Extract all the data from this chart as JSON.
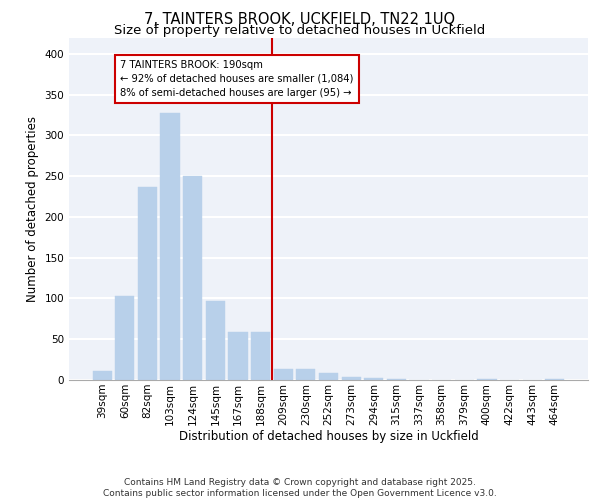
{
  "title1": "7, TAINTERS BROOK, UCKFIELD, TN22 1UQ",
  "title2": "Size of property relative to detached houses in Uckfield",
  "xlabel": "Distribution of detached houses by size in Uckfield",
  "ylabel": "Number of detached properties",
  "categories": [
    "39sqm",
    "60sqm",
    "82sqm",
    "103sqm",
    "124sqm",
    "145sqm",
    "167sqm",
    "188sqm",
    "209sqm",
    "230sqm",
    "252sqm",
    "273sqm",
    "294sqm",
    "315sqm",
    "337sqm",
    "358sqm",
    "379sqm",
    "400sqm",
    "422sqm",
    "443sqm",
    "464sqm"
  ],
  "values": [
    11,
    103,
    237,
    328,
    250,
    97,
    59,
    59,
    14,
    13,
    8,
    4,
    2,
    1,
    0,
    0,
    0,
    1,
    0,
    0,
    1
  ],
  "bar_color": "#b8d0ea",
  "vline_x_index": 7,
  "vline_color": "#cc0000",
  "annotation_text": "7 TAINTERS BROOK: 190sqm\n← 92% of detached houses are smaller (1,084)\n8% of semi-detached houses are larger (95) →",
  "annotation_box_color": "#cc0000",
  "ylim": [
    0,
    420
  ],
  "yticks": [
    0,
    50,
    100,
    150,
    200,
    250,
    300,
    350,
    400
  ],
  "footer": "Contains HM Land Registry data © Crown copyright and database right 2025.\nContains public sector information licensed under the Open Government Licence v3.0.",
  "bg_color": "#eef2f9",
  "grid_color": "#ffffff",
  "title_fontsize": 10.5,
  "subtitle_fontsize": 9.5,
  "tick_fontsize": 7.5,
  "ylabel_fontsize": 8.5,
  "xlabel_fontsize": 8.5,
  "footer_fontsize": 6.5
}
